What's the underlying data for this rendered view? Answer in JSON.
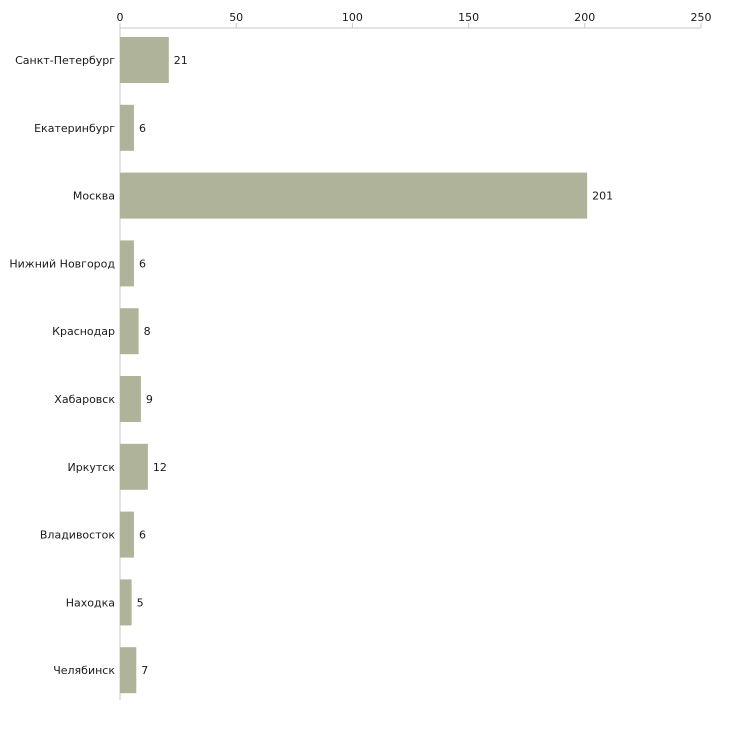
{
  "chart_data": {
    "type": "bar",
    "orientation": "horizontal",
    "title": "",
    "xlabel": "",
    "ylabel": "",
    "xlim": [
      0,
      250
    ],
    "x_ticks": [
      0,
      50,
      100,
      150,
      200,
      250
    ],
    "grid": false,
    "categories": [
      "Санкт-Петербург",
      "Екатеринбург",
      "Москва",
      "Нижний Новгород",
      "Краснодар",
      "Хабаровск",
      "Иркутск",
      "Владивосток",
      "Находка",
      "Челябинск"
    ],
    "values": [
      21,
      6,
      201,
      6,
      8,
      9,
      12,
      6,
      5,
      7
    ],
    "data_labels": [
      "21",
      "6",
      "201",
      "6",
      "8",
      "9",
      "12",
      "6",
      "5",
      "7"
    ],
    "colors": {
      "bar": "#afb39a",
      "axis": "#c7c7c7",
      "text": "#1a1a1a"
    }
  }
}
